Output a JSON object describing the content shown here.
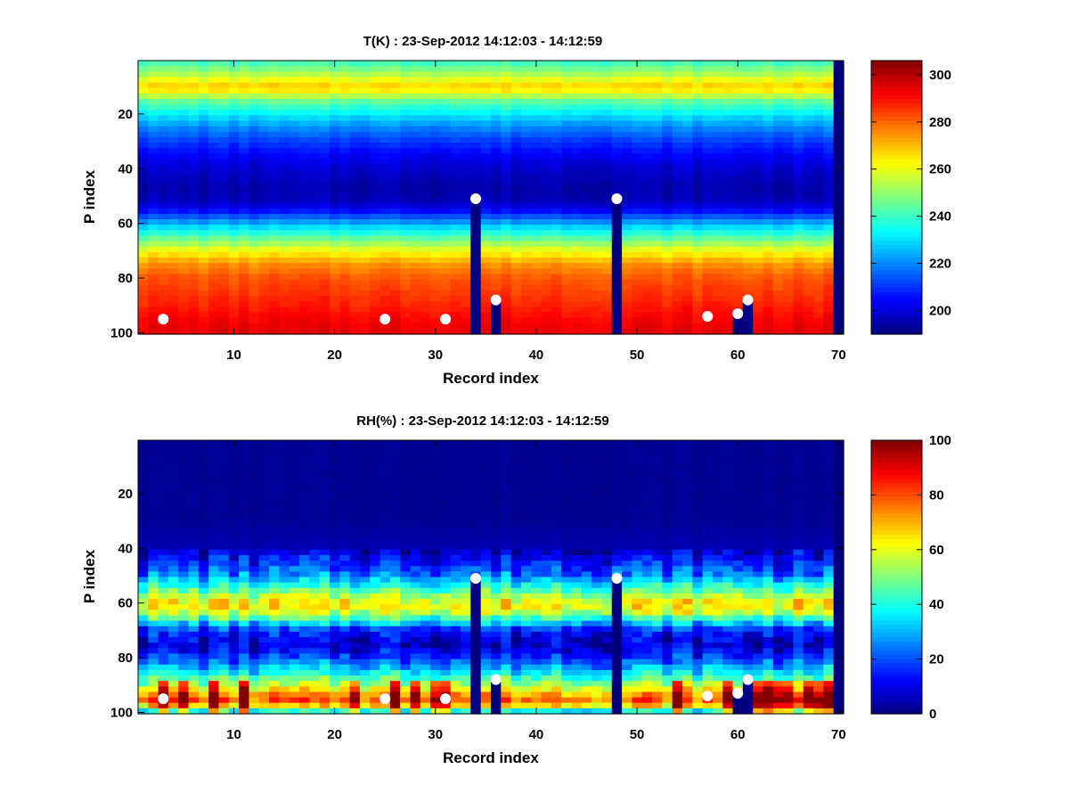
{
  "chart_data": [
    {
      "type": "heatmap",
      "title": "T(K) : 23-Sep-2012 14:12:03 - 14:12:59",
      "xlabel": "Record index",
      "ylabel": "P index",
      "xlim": [
        0.5,
        70.5
      ],
      "ylim": [
        100.5,
        0.5
      ],
      "y_direction": "reversed",
      "xticks": [
        10,
        20,
        30,
        40,
        50,
        60,
        70
      ],
      "yticks": [
        20,
        40,
        60,
        80,
        100
      ],
      "colormap": "jet",
      "clim": [
        190,
        306
      ],
      "colorbar_ticks": [
        200,
        220,
        240,
        260,
        280,
        300
      ],
      "profile_p": [
        1,
        5,
        8,
        10,
        12,
        15,
        20,
        25,
        30,
        35,
        40,
        45,
        48,
        52,
        55,
        60,
        65,
        70,
        75,
        80,
        85,
        90,
        95,
        99
      ],
      "profile_values": [
        240,
        252,
        262,
        268,
        262,
        246,
        232,
        220,
        211,
        204,
        199,
        196,
        195,
        197,
        204,
        224,
        243,
        261,
        275,
        282,
        285,
        288,
        292,
        294
      ],
      "invalid_fill_value": 190,
      "bottom_fill_row": 100,
      "rightmost_column_invalid": 70,
      "surface_points": [
        {
          "record": 3,
          "p": 95,
          "invalid_below": false
        },
        {
          "record": 25,
          "p": 95,
          "invalid_below": false
        },
        {
          "record": 31,
          "p": 95,
          "invalid_below": false
        },
        {
          "record": 34,
          "p": 51,
          "invalid_below": true
        },
        {
          "record": 36,
          "p": 88,
          "invalid_below": true
        },
        {
          "record": 48,
          "p": 51,
          "invalid_below": true
        },
        {
          "record": 57,
          "p": 94,
          "invalid_below": false
        },
        {
          "record": 60,
          "p": 93,
          "invalid_below": true
        },
        {
          "record": 61,
          "p": 88,
          "invalid_below": true
        }
      ]
    },
    {
      "type": "heatmap",
      "title": "RH(%) : 23-Sep-2012 14:12:03 - 14:12:59",
      "xlabel": "Record index",
      "ylabel": "P index",
      "xlim": [
        0.5,
        70.5
      ],
      "ylim": [
        100.5,
        0.5
      ],
      "y_direction": "reversed",
      "xticks": [
        10,
        20,
        30,
        40,
        50,
        60,
        70
      ],
      "yticks": [
        20,
        40,
        60,
        80,
        100
      ],
      "colormap": "jet",
      "clim": [
        0,
        100
      ],
      "colorbar_ticks": [
        0,
        20,
        40,
        60,
        80,
        100
      ],
      "profile_p": [
        1,
        30,
        40,
        45,
        50,
        55,
        58,
        60,
        62,
        64,
        67,
        70,
        75,
        80,
        85,
        90,
        93,
        95,
        97,
        99
      ],
      "profile_values": [
        2,
        2,
        5,
        15,
        25,
        45,
        58,
        64,
        62,
        55,
        35,
        15,
        8,
        18,
        35,
        55,
        70,
        80,
        75,
        40
      ],
      "invalid_fill_value": 0,
      "bottom_fill_row": 100,
      "rightmost_column_invalid": 70,
      "surface_points": [
        {
          "record": 3,
          "p": 95,
          "invalid_below": false
        },
        {
          "record": 25,
          "p": 95,
          "invalid_below": false
        },
        {
          "record": 31,
          "p": 95,
          "invalid_below": false
        },
        {
          "record": 34,
          "p": 51,
          "invalid_below": true
        },
        {
          "record": 36,
          "p": 88,
          "invalid_below": true
        },
        {
          "record": 48,
          "p": 51,
          "invalid_below": true
        },
        {
          "record": 57,
          "p": 94,
          "invalid_below": false
        },
        {
          "record": 60,
          "p": 93,
          "invalid_below": true
        },
        {
          "record": 61,
          "p": 88,
          "invalid_below": true
        }
      ]
    }
  ]
}
